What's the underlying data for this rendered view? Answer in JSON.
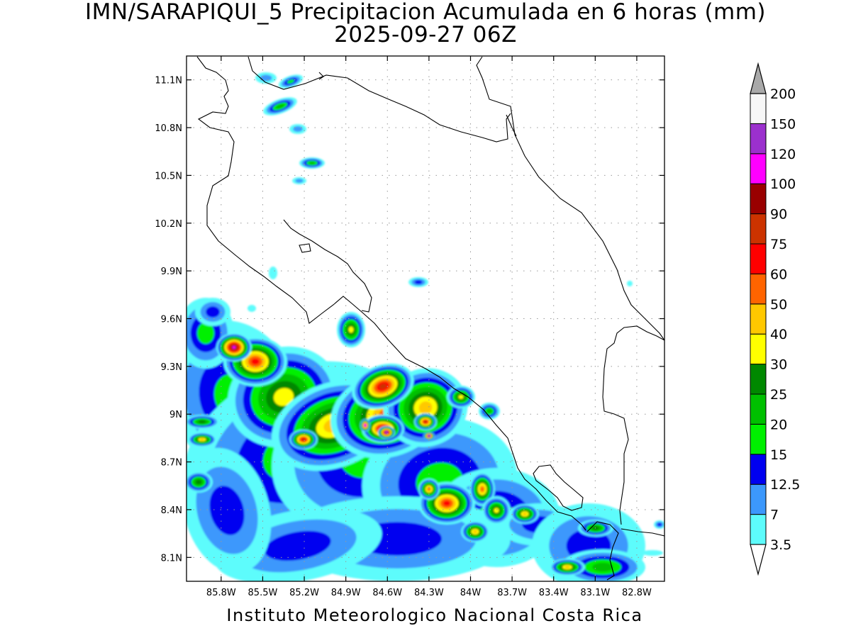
{
  "title": "IMN/SARAPIQUI_5 Precipitacion Acumulada en 6 horas (mm)",
  "subtitle": "2025-09-27 06Z",
  "footer": "Instituto Meteorologico Nacional Costa Rica",
  "lat_ticks": [
    "11.1N",
    "10.8N",
    "10.5N",
    "10.2N",
    "9.9N",
    "9.6N",
    "9.3N",
    "9N",
    "8.7N",
    "8.4N",
    "8.1N"
  ],
  "lon_ticks": [
    "85.8W",
    "85.5W",
    "85.2W",
    "84.9W",
    "84.6W",
    "84.3W",
    "84W",
    "83.7W",
    "83.4W",
    "83.1W",
    "82.8W"
  ],
  "colorbar": {
    "levels": [
      "3.5",
      "7",
      "12.5",
      "15",
      "20",
      "25",
      "30",
      "40",
      "50",
      "60",
      "75",
      "90",
      "100",
      "120",
      "150",
      "200"
    ],
    "colors": [
      "#5dfcfc",
      "#3c98fc",
      "#0000f0",
      "#00f000",
      "#00c000",
      "#008800",
      "#ffff00",
      "#ffc800",
      "#ff6400",
      "#ff0000",
      "#cc3300",
      "#990000",
      "#ff00ff",
      "#9b30cd",
      "#f7f7f7",
      "#a9a9a9"
    ]
  },
  "map": {
    "extent": {
      "lon_min": -86.05,
      "lon_max": -82.6,
      "lat_min": 7.95,
      "lat_max": 11.25
    },
    "grid": "dotted"
  }
}
